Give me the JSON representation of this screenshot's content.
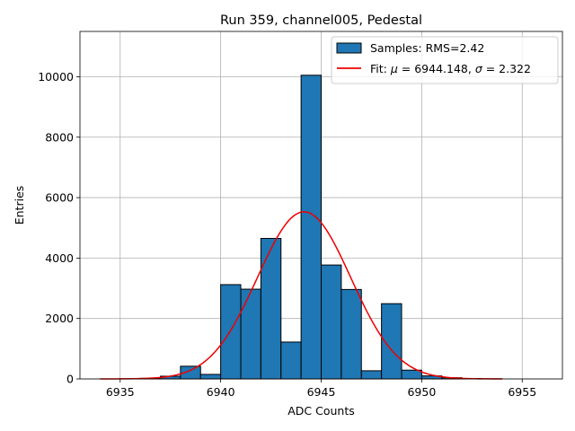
{
  "chart_data": {
    "type": "bar",
    "title": "Run 359, channel005, Pedestal",
    "xlabel": "ADC Counts",
    "ylabel": "Entries",
    "xlim": [
      6933,
      6957
    ],
    "ylim": [
      0,
      11500
    ],
    "xticks": [
      6935,
      6940,
      6945,
      6950,
      6955
    ],
    "yticks": [
      0,
      2000,
      4000,
      6000,
      8000,
      10000
    ],
    "grid": true,
    "legend_position": "top-right",
    "legend": {
      "hist_label": "Samples: RMS=2.42",
      "fit_prefix": "Fit: ",
      "fit_mu_symbol": "μ",
      "fit_mu_value": " = 6944.148, ",
      "fit_sigma_symbol": "σ",
      "fit_sigma_value": " = 2.322"
    },
    "bin_width": 1,
    "bins": [
      {
        "x": 6934,
        "count": 0
      },
      {
        "x": 6935,
        "count": 5
      },
      {
        "x": 6936,
        "count": 20
      },
      {
        "x": 6937,
        "count": 90
      },
      {
        "x": 6938,
        "count": 420
      },
      {
        "x": 6939,
        "count": 150
      },
      {
        "x": 6940,
        "count": 3120
      },
      {
        "x": 6941,
        "count": 2970
      },
      {
        "x": 6942,
        "count": 4650
      },
      {
        "x": 6943,
        "count": 1220
      },
      {
        "x": 6944,
        "count": 10050
      },
      {
        "x": 6945,
        "count": 3770
      },
      {
        "x": 6946,
        "count": 2960
      },
      {
        "x": 6947,
        "count": 270
      },
      {
        "x": 6948,
        "count": 2490
      },
      {
        "x": 6949,
        "count": 290
      },
      {
        "x": 6950,
        "count": 100
      },
      {
        "x": 6951,
        "count": 40
      },
      {
        "x": 6952,
        "count": 15
      },
      {
        "x": 6953,
        "count": 5
      }
    ],
    "fit": {
      "mu": 6944.148,
      "sigma": 2.322,
      "amplitude": 5530,
      "x_range": [
        6934,
        6954
      ]
    },
    "colors": {
      "bar": "#1f77b4",
      "bar_edge": "#000000",
      "fit": "#ee0000",
      "grid": "#b0b0b0"
    }
  }
}
